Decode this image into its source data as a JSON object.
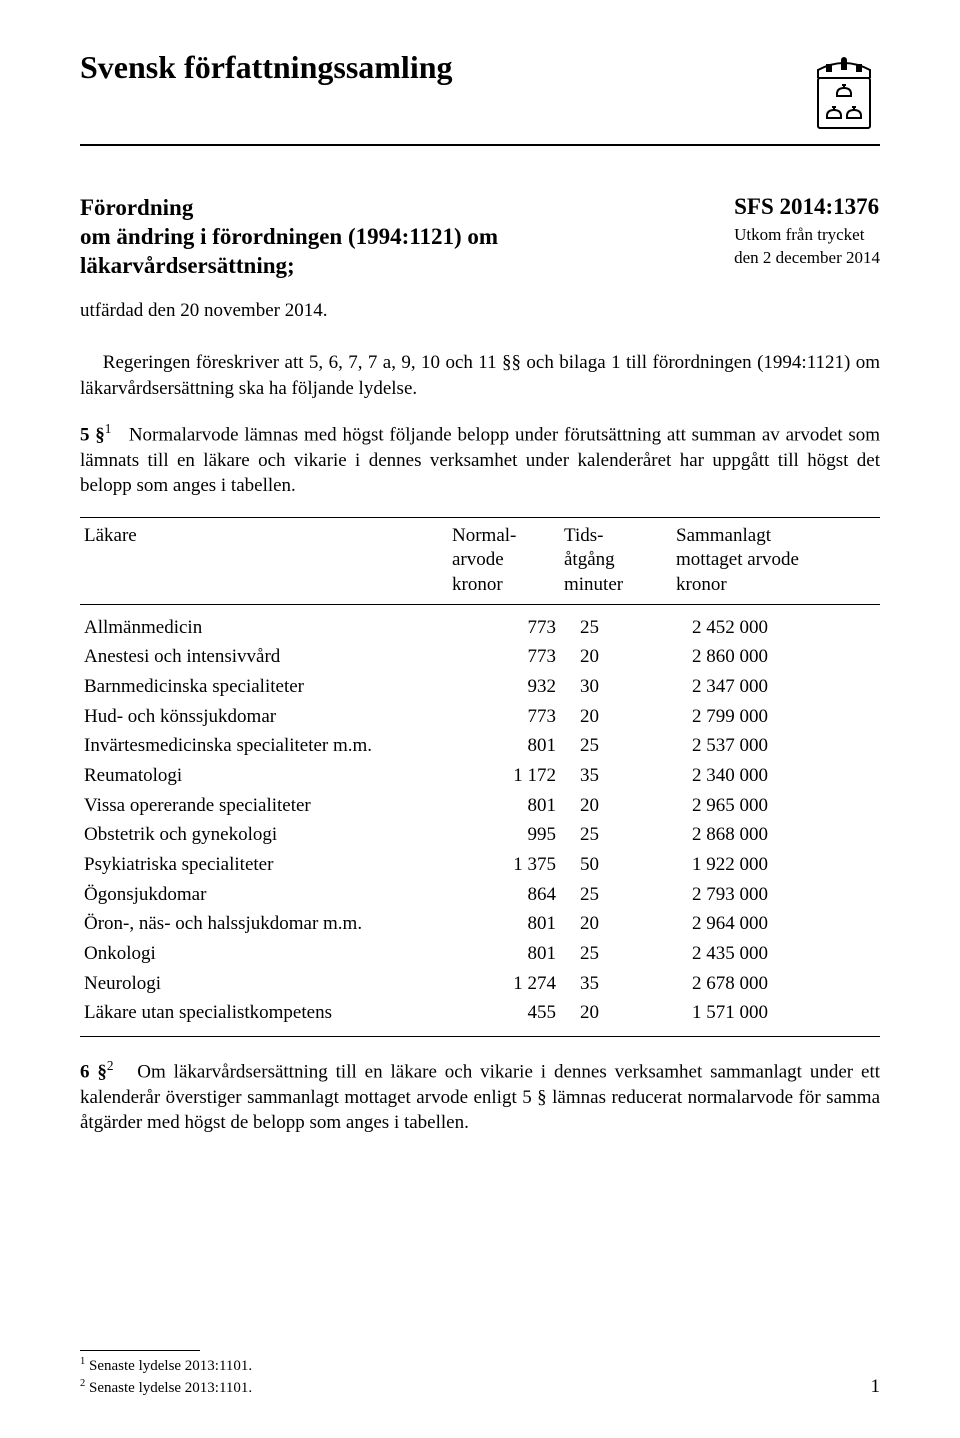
{
  "header": {
    "collection_title": "Svensk författningssamling"
  },
  "subheader": {
    "regulation_word": "Förordning",
    "regulation_line2": "om ändring i förordningen (1994:1121) om",
    "regulation_line3": "läkarvårdsersättning;",
    "sfs_number": "SFS 2014:1376",
    "utkom_line1": "Utkom från trycket",
    "utkom_line2": "den 2 december 2014"
  },
  "issued": "utfärdad den 20 november 2014.",
  "para_gov": "Regeringen föreskriver att 5, 6, 7, 7 a, 9, 10 och 11 §§ och bilaga 1 till förordningen (1994:1121) om läkarvårdsersättning ska ha följande lydelse.",
  "s5": {
    "label": "5 §",
    "fn": "1",
    "text": "Normalarvode lämnas med högst följande belopp under förutsättning att summan av arvodet som lämnats till en läkare och vikarie i dennes verksamhet under kalenderåret har uppgått till högst det belopp som anges i tabellen."
  },
  "table": {
    "columns": {
      "c1": "Läkare",
      "c2a": "Normal-",
      "c2b": "arvode",
      "c2c": "kronor",
      "c3a": "Tids-",
      "c3b": "åtgång",
      "c3c": "minuter",
      "c4a": "Sammanlagt",
      "c4b": "mottaget arvode",
      "c4c": "kronor"
    },
    "rows": [
      {
        "name": "Allmänmedicin",
        "arvode": "773",
        "tid": "25",
        "sum": "2 452 000"
      },
      {
        "name": "Anestesi och intensivvård",
        "arvode": "773",
        "tid": "20",
        "sum": "2 860 000"
      },
      {
        "name": "Barnmedicinska specialiteter",
        "arvode": "932",
        "tid": "30",
        "sum": "2 347 000"
      },
      {
        "name": "Hud- och könssjukdomar",
        "arvode": "773",
        "tid": "20",
        "sum": "2 799 000"
      },
      {
        "name": "Invärtesmedicinska specialiteter m.m.",
        "arvode": "801",
        "tid": "25",
        "sum": "2 537 000"
      },
      {
        "name": "Reumatologi",
        "arvode": "1 172",
        "tid": "35",
        "sum": "2 340 000"
      },
      {
        "name": "Vissa opererande specialiteter",
        "arvode": "801",
        "tid": "20",
        "sum": "2 965 000"
      },
      {
        "name": "Obstetrik och gynekologi",
        "arvode": "995",
        "tid": "25",
        "sum": "2 868 000"
      },
      {
        "name": "Psykiatriska specialiteter",
        "arvode": "1 375",
        "tid": "50",
        "sum": "1 922 000"
      },
      {
        "name": "Ögonsjukdomar",
        "arvode": "864",
        "tid": "25",
        "sum": "2 793 000"
      },
      {
        "name": "Öron-, näs- och halssjukdomar m.m.",
        "arvode": "801",
        "tid": "20",
        "sum": "2 964 000"
      },
      {
        "name": "Onkologi",
        "arvode": "801",
        "tid": "25",
        "sum": "2 435 000"
      },
      {
        "name": "Neurologi",
        "arvode": "1 274",
        "tid": "35",
        "sum": "2 678 000"
      },
      {
        "name": "Läkare utan specialistkompetens",
        "arvode": "455",
        "tid": "20",
        "sum": "1 571 000"
      }
    ]
  },
  "s6": {
    "label": "6 §",
    "fn": "2",
    "text": "Om läkarvårdsersättning till en läkare och vikarie i dennes verksamhet sammanlagt under ett kalenderår överstiger sammanlagt mottaget arvode enligt 5 § lämnas reducerat normalarvode för samma åtgärder med högst de belopp som anges i tabellen."
  },
  "footnotes": {
    "f1": "Senaste lydelse 2013:1101.",
    "f2": "Senaste lydelse 2013:1101."
  },
  "page_number": "1"
}
